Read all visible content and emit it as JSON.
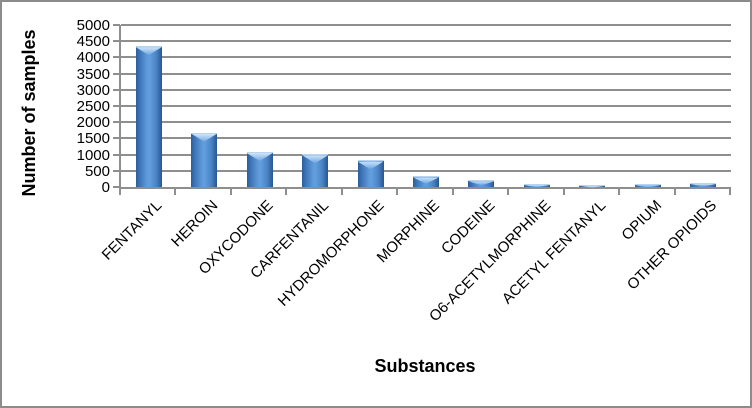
{
  "frame": {
    "border_color": "#8c8c8c",
    "background": "#ffffff"
  },
  "chart_data": {
    "type": "bar",
    "title": "",
    "categories": [
      "FENTANYL",
      "HEROIN",
      "OXYCODONE",
      "CARFENTANIL",
      "HYDROMORPHONE",
      "MORPHINE",
      "CODEINE",
      "O6-ACETYLMORPHINE",
      "ACETYL FENTANYL",
      "OPIUM",
      "OTHER OPIOIDS"
    ],
    "values": [
      4350,
      1680,
      1080,
      1010,
      820,
      330,
      210,
      95,
      75,
      85,
      125
    ],
    "xlabel": "Substances",
    "ylabel": "Number of samples",
    "ylim": [
      0,
      5000
    ],
    "yticks": [
      0,
      500,
      1000,
      1500,
      2000,
      2500,
      3000,
      3500,
      4000,
      4500,
      5000
    ],
    "grid": true,
    "legend": false,
    "layout_hints": {
      "legend_position": "none",
      "category_label_rotation_deg": -45,
      "bar_style": "3d-bevel"
    },
    "colors": {
      "bar_edge": "#2b5d9b",
      "bar_center": "#5f9ad8",
      "bar_highlight": "#cfe5f7",
      "gridline": "#8e8e8e",
      "axis": "#8e8e8e",
      "text": "#000000"
    }
  }
}
